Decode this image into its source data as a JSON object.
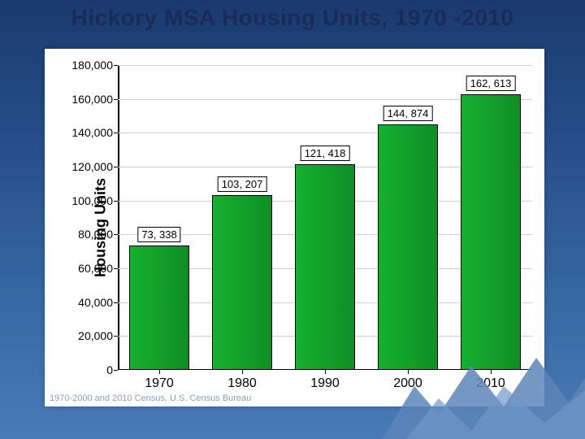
{
  "title": "Hickory MSA Housing Units, 1970 -2010",
  "chart": {
    "type": "bar",
    "y_axis_label": "Housing Units",
    "ylim": [
      0,
      180000
    ],
    "ytick_step": 20000,
    "y_tick_labels": [
      "0",
      "20,000",
      "40,000",
      "60,000",
      "80,000",
      "100,000",
      "120,000",
      "140,000",
      "160,000",
      "180,000"
    ],
    "categories": [
      "1970",
      "1980",
      "1990",
      "2000",
      "2010"
    ],
    "values": [
      73338,
      103207,
      121418,
      144874,
      162613
    ],
    "value_labels": [
      "73, 338",
      "103, 207",
      "121, 418",
      "144, 874",
      "162, 613"
    ],
    "bar_fill": "#17b030",
    "bar_border": "#000000",
    "grid_color": "#cfcfcf",
    "background": "#ffffff",
    "title_fontsize": 28,
    "label_fontsize": 18,
    "tick_fontsize": 14,
    "x_tick_fontsize": 16,
    "value_label_fontsize": 13,
    "bar_rel_width": 0.72
  },
  "caption": "1970-2000 and 2010 Census, U.S. Census Bureau",
  "slide_bg_gradient": [
    "#1a3a6e",
    "#4a7bb6"
  ]
}
